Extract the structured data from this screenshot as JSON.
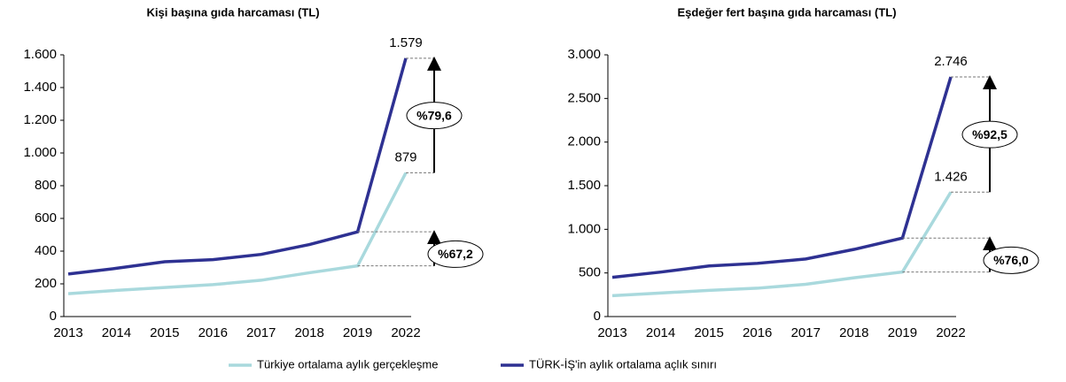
{
  "chart_data": [
    {
      "type": "line",
      "title": "Kişi başına gıda harcaması (TL)",
      "categories": [
        "2013",
        "2014",
        "2015",
        "2016",
        "2017",
        "2018",
        "2019",
        "2022"
      ],
      "series": [
        {
          "name": "Türkiye ortalama aylık gerçekleşme",
          "color": "#a9d9dd",
          "values": [
            140,
            160,
            178,
            195,
            222,
            268,
            310,
            879
          ],
          "value_labels": [
            null,
            null,
            null,
            null,
            null,
            null,
            null,
            "879"
          ]
        },
        {
          "name": "TÜRK-İŞ'in aylık ortalama açlık sınırı",
          "color": "#2e3192",
          "values": [
            260,
            295,
            335,
            348,
            380,
            440,
            518,
            1579
          ],
          "value_labels": [
            null,
            null,
            null,
            null,
            null,
            null,
            null,
            "1.579"
          ]
        }
      ],
      "ylim": [
        0,
        1600
      ],
      "yticks": [
        0,
        200,
        400,
        600,
        800,
        {
          "value": 1000,
          "label": "1.000"
        },
        {
          "value": 1200,
          "label": "1.200"
        },
        {
          "value": 1400,
          "label": "1.400"
        },
        {
          "value": 1600,
          "label": "1.600"
        }
      ],
      "annotations": [
        "%79,6",
        "%67,2"
      ]
    },
    {
      "type": "line",
      "title": "Eşdeğer fert başına gıda harcaması (TL)",
      "categories": [
        "2013",
        "2014",
        "2015",
        "2016",
        "2017",
        "2018",
        "2019",
        "2022"
      ],
      "series": [
        {
          "color": "#a9d9dd",
          "values": [
            240,
            270,
            300,
            325,
            370,
            445,
            511,
            1426
          ],
          "value_labels": [
            null,
            null,
            null,
            null,
            null,
            null,
            null,
            "1.426"
          ]
        },
        {
          "color": "#2e3192",
          "values": [
            450,
            510,
            580,
            610,
            660,
            770,
            900,
            2746
          ],
          "value_labels": [
            null,
            null,
            null,
            null,
            null,
            null,
            null,
            "2.746"
          ]
        }
      ],
      "ylim": [
        0,
        3000
      ],
      "yticks": [
        0,
        500,
        {
          "value": 1000,
          "label": "1.000"
        },
        {
          "value": 1500,
          "label": "1.500"
        },
        {
          "value": 2000,
          "label": "2.000"
        },
        {
          "value": 2500,
          "label": "2.500"
        },
        {
          "value": 3000,
          "label": "3.000"
        }
      ],
      "annotations": [
        "%92,5",
        "%76,0"
      ]
    }
  ]
}
